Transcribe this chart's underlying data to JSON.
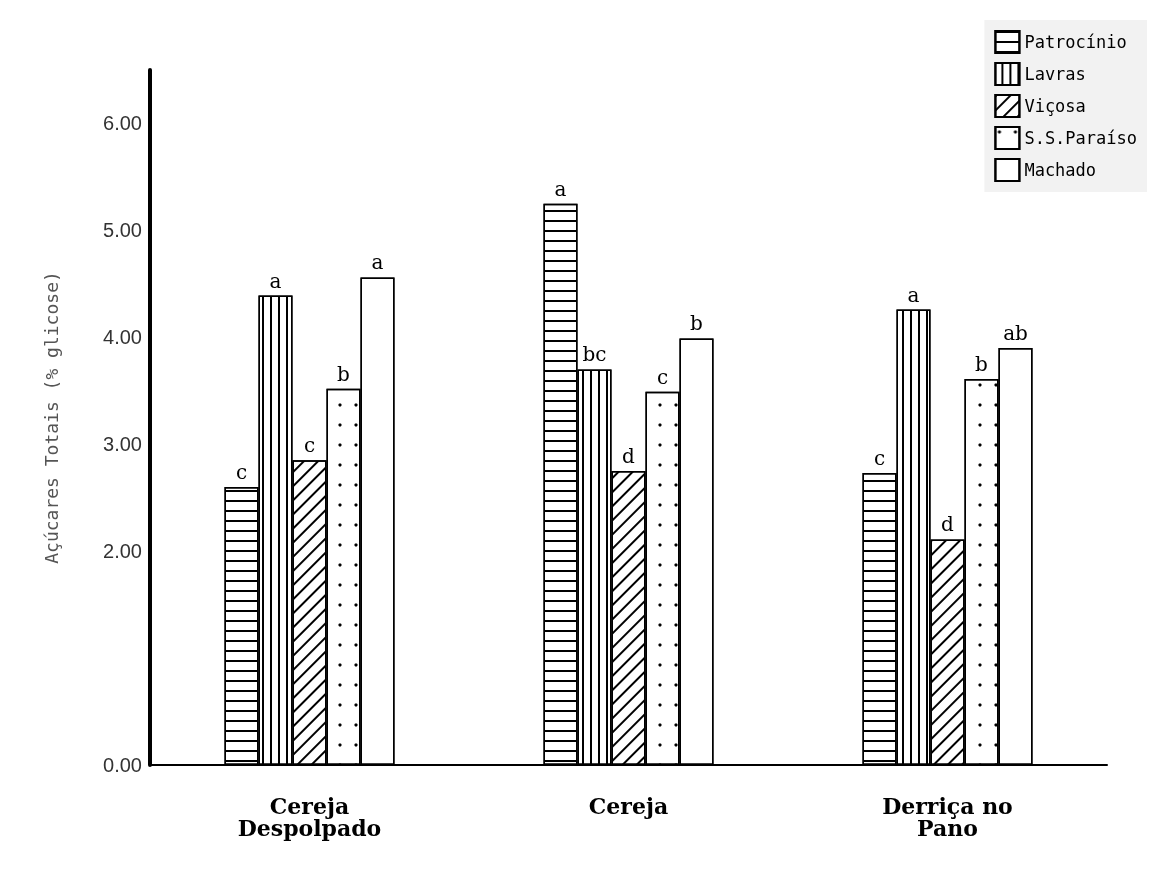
{
  "chart_data": {
    "type": "bar",
    "ylabel": "Açúcares Totais (% glicose)",
    "categories": [
      "Cereja\nDespolpado",
      "Cereja",
      "Derriça no\nPano"
    ],
    "series": [
      {
        "name": "Patrocínio",
        "color": "#ffffff",
        "values": [
          2.6,
          5.25,
          2.73
        ],
        "value_labels": [
          "c",
          "a",
          "c"
        ]
      },
      {
        "name": "Lavras",
        "color": "#ffffff",
        "values": [
          4.39,
          3.7,
          4.26
        ],
        "value_labels": [
          "a",
          "bc",
          "a"
        ]
      },
      {
        "name": "Viçosa",
        "color": "#ffffff",
        "values": [
          2.85,
          2.75,
          2.11
        ],
        "value_labels": [
          "c",
          "d",
          "d"
        ]
      },
      {
        "name": "S.S.Paraíso",
        "color": "#ffffff",
        "values": [
          3.52,
          3.49,
          3.61
        ],
        "value_labels": [
          "b",
          "c",
          "b"
        ]
      },
      {
        "name": "Machado",
        "color": "#ffffff",
        "values": [
          4.56,
          3.99,
          3.9
        ],
        "value_labels": [
          "a",
          "b",
          "ab"
        ]
      }
    ],
    "ylim": [
      0,
      6.5
    ],
    "yticks": [
      {
        "value": 0,
        "label": "0.00"
      },
      {
        "value": 2,
        "label": "2.00"
      },
      {
        "value": 3,
        "label": "3.00"
      },
      {
        "value": 4,
        "label": "4.00"
      },
      {
        "value": 5,
        "label": "5.00"
      },
      {
        "value": 6,
        "label": "6.00"
      }
    ],
    "grid": false,
    "legend": "top right"
  }
}
